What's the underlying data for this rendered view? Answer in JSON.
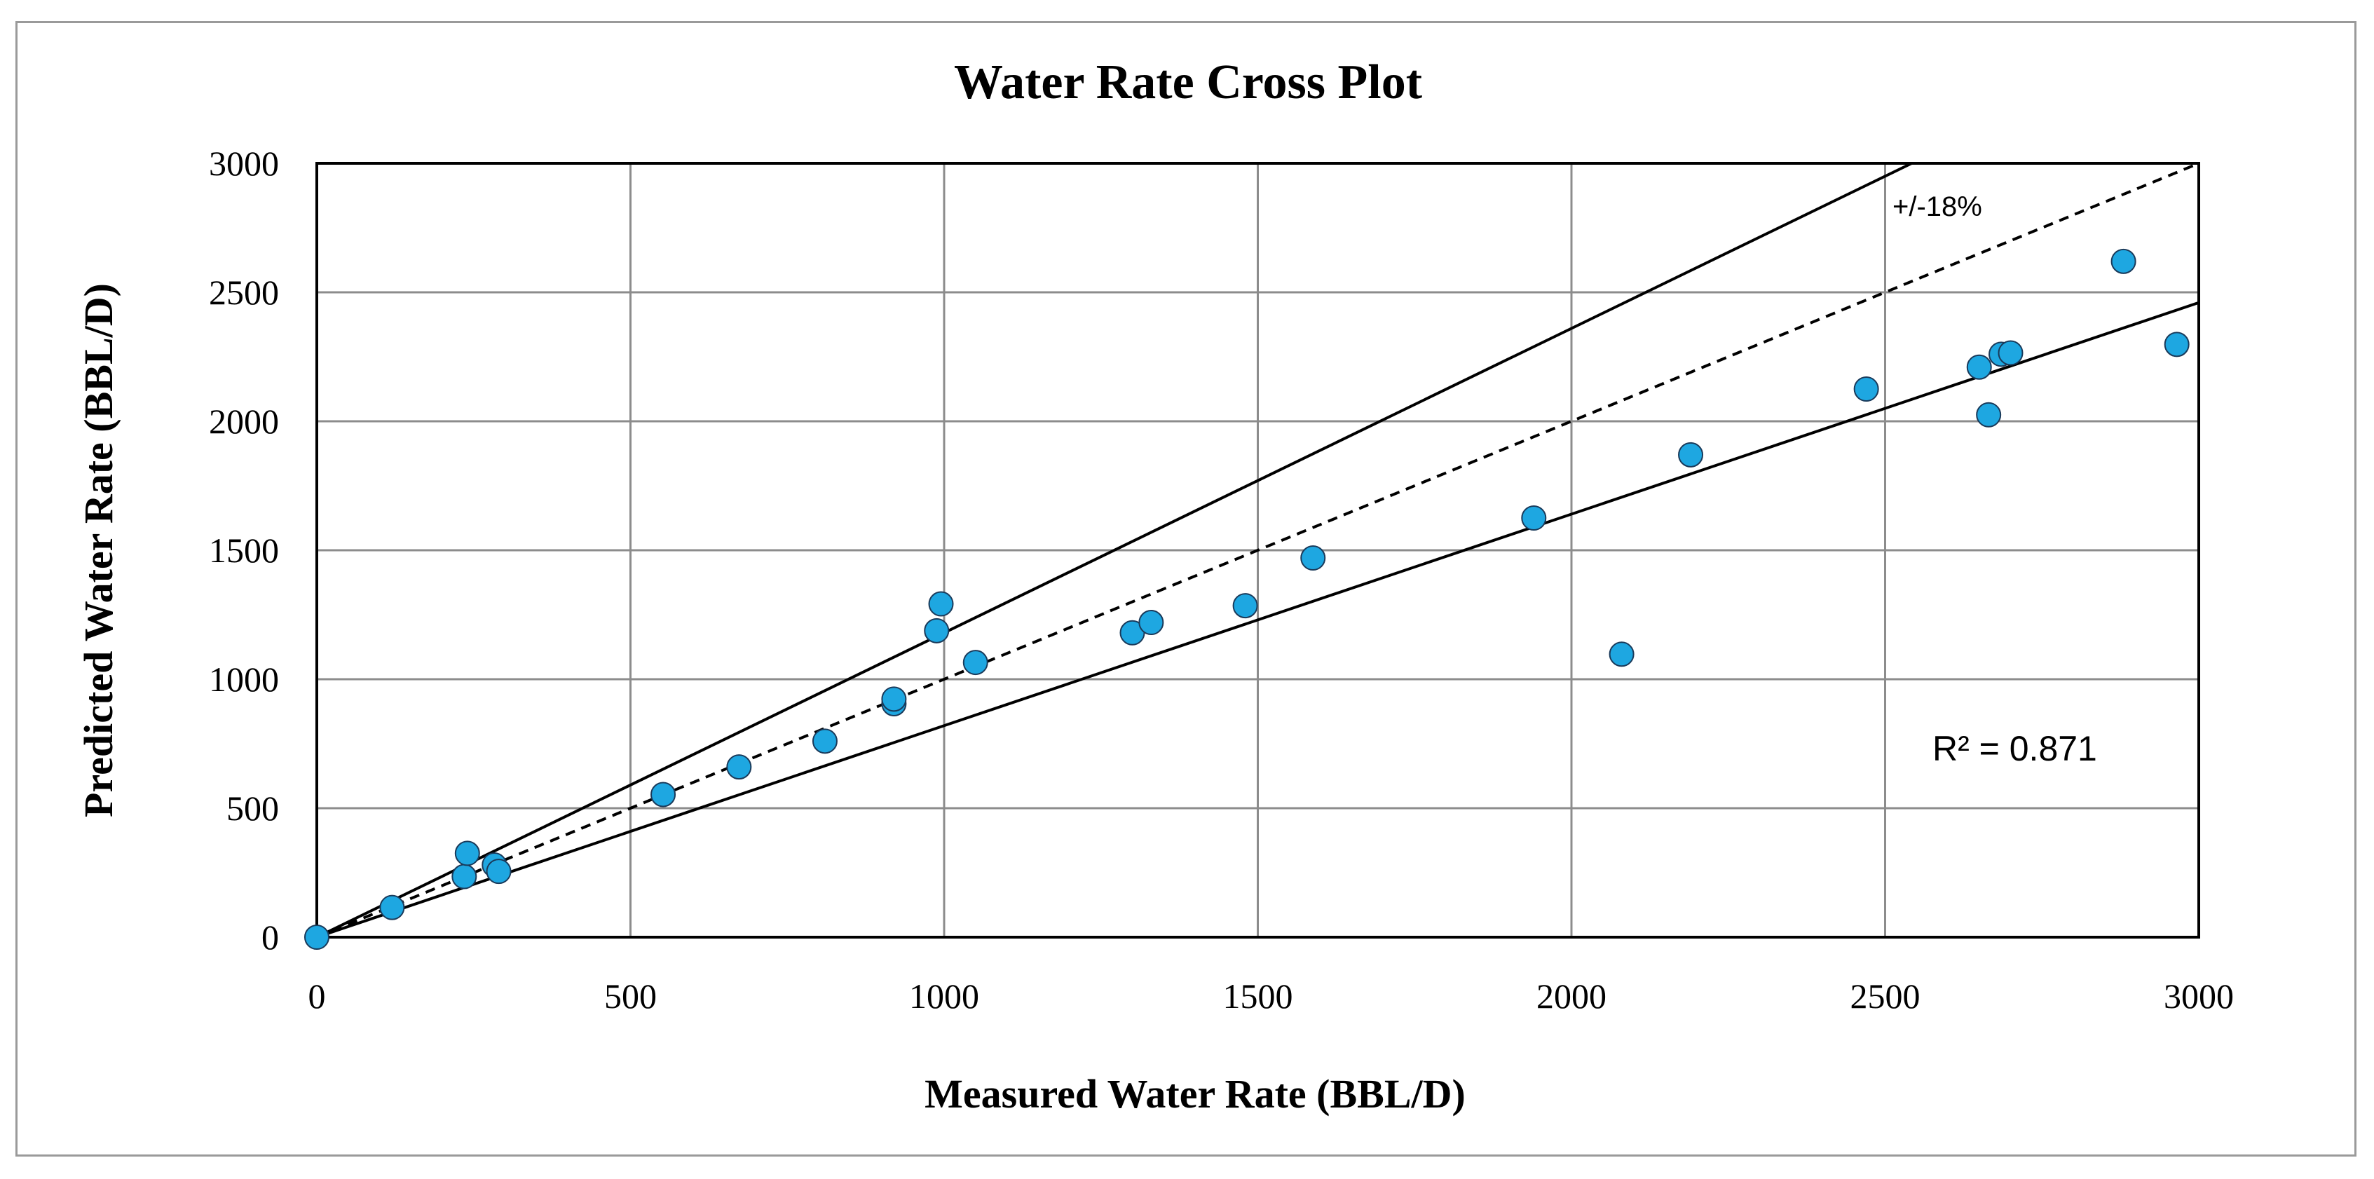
{
  "chart_data": {
    "type": "scatter",
    "title": "Water Rate Cross Plot",
    "xlabel": "Measured Water Rate (BBL/D)",
    "ylabel": "Predicted Water Rate (BBL/D)",
    "xlim": [
      0,
      3000
    ],
    "ylim": [
      0,
      3000
    ],
    "xticks": [
      0,
      500,
      1000,
      1500,
      2000,
      2500,
      3000
    ],
    "yticks": [
      0,
      500,
      1000,
      1500,
      2000,
      2500,
      3000
    ],
    "grid": true,
    "marker_color": "#1ea7e1",
    "marker_edge": "#1a3a5a",
    "points": [
      [
        0,
        0
      ],
      [
        120,
        115
      ],
      [
        235,
        235
      ],
      [
        240,
        325
      ],
      [
        283,
        280
      ],
      [
        290,
        255
      ],
      [
        552,
        553
      ],
      [
        673,
        660
      ],
      [
        810,
        760
      ],
      [
        920,
        905
      ],
      [
        920,
        923
      ],
      [
        988,
        1188
      ],
      [
        995,
        1292
      ],
      [
        1050,
        1065
      ],
      [
        1300,
        1180
      ],
      [
        1330,
        1220
      ],
      [
        1480,
        1285
      ],
      [
        1588,
        1470
      ],
      [
        1940,
        1625
      ],
      [
        2080,
        1097
      ],
      [
        2190,
        1870
      ],
      [
        2470,
        2125
      ],
      [
        2650,
        2210
      ],
      [
        2665,
        2025
      ],
      [
        2685,
        2260
      ],
      [
        2700,
        2265
      ],
      [
        2880,
        2620
      ],
      [
        2965,
        2298
      ]
    ],
    "reference_lines": [
      {
        "slope": 1.0,
        "style": "dashed"
      },
      {
        "slope": 1.18,
        "style": "solid"
      },
      {
        "slope": 0.82,
        "style": "solid"
      }
    ],
    "annotations": {
      "band_label": "+/-18%",
      "r_squared": "R² = 0.871"
    }
  }
}
